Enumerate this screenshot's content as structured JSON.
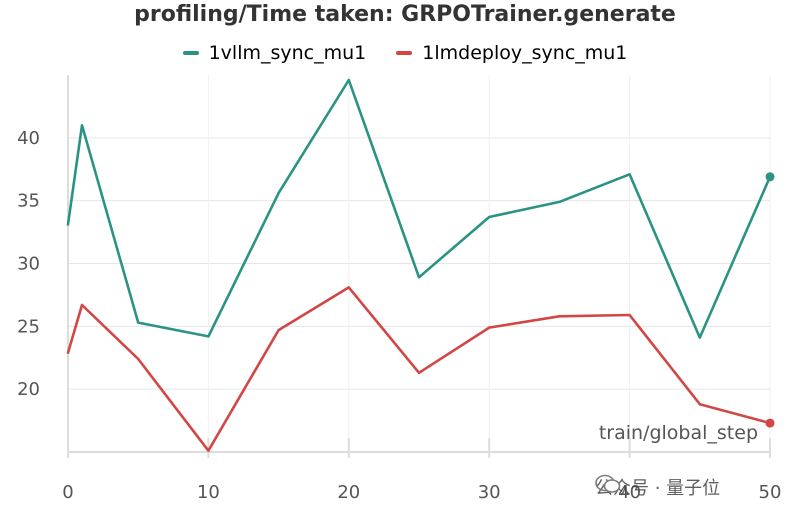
{
  "chart_data": {
    "type": "line",
    "title": "profiling/Time taken: GRPOTrainer.generate",
    "xlabel": "train/global_step",
    "ylabel": "",
    "xlim": [
      0,
      50
    ],
    "ylim": [
      15,
      45
    ],
    "xticks": [
      0,
      10,
      20,
      30,
      40,
      50
    ],
    "yticks": [
      20,
      25,
      30,
      35,
      40
    ],
    "grid": true,
    "legend_position": "top-center",
    "series": [
      {
        "name": "1vllm_sync_mu1",
        "color": "#2a9384",
        "x": [
          0,
          1,
          5,
          10,
          15,
          20,
          25,
          30,
          35,
          40,
          45,
          50
        ],
        "y": [
          33.1,
          41.0,
          25.3,
          24.2,
          35.6,
          44.6,
          28.9,
          33.7,
          34.9,
          37.1,
          24.1,
          36.9
        ],
        "end_marker": true
      },
      {
        "name": "1lmdeploy_sync_mu1",
        "color": "#d24745",
        "x": [
          0,
          1,
          5,
          10,
          15,
          20,
          25,
          30,
          35,
          40,
          45,
          50
        ],
        "y": [
          22.9,
          26.7,
          22.4,
          15.1,
          24.7,
          28.1,
          21.3,
          24.9,
          25.8,
          25.9,
          18.8,
          17.3
        ],
        "end_marker": true
      }
    ]
  },
  "watermark": {
    "text": "公众号 · 量子位"
  }
}
